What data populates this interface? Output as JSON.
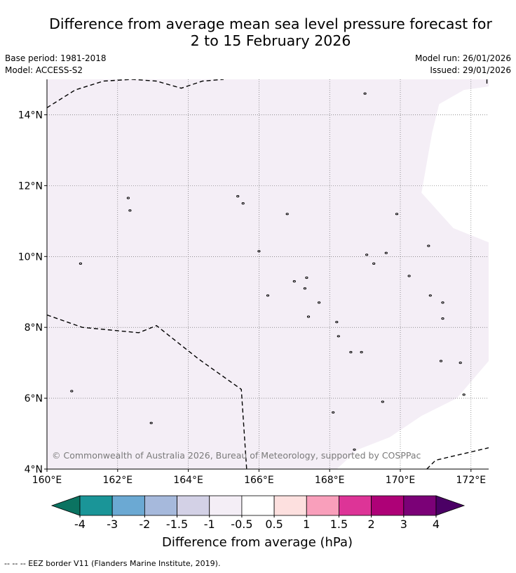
{
  "title_line1": "Difference from average mean sea level pressure forecast for",
  "title_line2": "2 to 15 February 2026",
  "meta_left": {
    "base_period": "Base period: 1981-2018",
    "model": "Model: ACCESS-S2"
  },
  "meta_right": {
    "model_run": "Model run: 26/01/2026",
    "issued": "Issued: 29/01/2026"
  },
  "copyright": "© Commonwealth of Australia 2026, Bureau of Meteorology, supported by COSPPac",
  "footer": "--  --  -- EEZ border V11 (Flanders Marine Institute, 2019).",
  "chart_data": {
    "type": "heatmap",
    "title": "Difference from average mean sea level pressure forecast for 2 to 15 February 2026",
    "x_range": [
      160,
      172.5
    ],
    "y_range": [
      4,
      15
    ],
    "x_ticks": [
      {
        "value": 160,
        "label": "160°E"
      },
      {
        "value": 162,
        "label": "162°E"
      },
      {
        "value": 164,
        "label": "164°E"
      },
      {
        "value": 166,
        "label": "166°E"
      },
      {
        "value": 168,
        "label": "168°E"
      },
      {
        "value": 170,
        "label": "170°E"
      },
      {
        "value": 172,
        "label": "172°E"
      }
    ],
    "y_ticks": [
      {
        "value": 14,
        "label": "14°N"
      },
      {
        "value": 12,
        "label": "12°N"
      },
      {
        "value": 10,
        "label": "10°N"
      },
      {
        "value": 8,
        "label": "8°N"
      },
      {
        "value": 6,
        "label": "6°N"
      },
      {
        "value": 4,
        "label": "4°N"
      }
    ],
    "grid": true,
    "fill_category": "-1 to -0.5",
    "fill_color": "#f4eef6",
    "neutral_category": "-0.5 to 0.5",
    "neutral_region_lonlat": [
      [
        172.5,
        14.8
      ],
      [
        171.8,
        14.7
      ],
      [
        171.1,
        14.3
      ],
      [
        170.9,
        13.5
      ],
      [
        170.6,
        11.8
      ],
      [
        171.5,
        10.8
      ],
      [
        172.0,
        10.6
      ],
      [
        172.5,
        10.4
      ],
      [
        172.5,
        7.05
      ],
      [
        171.6,
        6.0
      ],
      [
        170.6,
        5.5
      ],
      [
        169.7,
        4.9
      ],
      [
        168.8,
        4.55
      ],
      [
        168.2,
        4.0
      ],
      [
        172.5,
        4.0
      ]
    ],
    "eez_borders_lonlat": [
      [
        [
          160.0,
          14.2
        ],
        [
          160.8,
          14.7
        ],
        [
          161.6,
          14.95
        ],
        [
          162.4,
          15.0
        ],
        [
          163.1,
          14.95
        ],
        [
          163.8,
          14.75
        ],
        [
          164.4,
          14.95
        ],
        [
          165.0,
          15.0
        ]
      ],
      [
        [
          160.0,
          8.35
        ],
        [
          161.0,
          8.0
        ],
        [
          162.6,
          7.85
        ],
        [
          163.1,
          8.05
        ],
        [
          164.3,
          7.1
        ],
        [
          165.5,
          6.25
        ],
        [
          165.65,
          4.0
        ]
      ],
      [
        [
          170.75,
          4.0
        ],
        [
          171.0,
          4.25
        ],
        [
          172.5,
          4.6
        ]
      ],
      [
        [
          172.45,
          15.0
        ],
        [
          172.45,
          14.85
        ]
      ]
    ],
    "islands_lonlat": [
      [
        160.95,
        9.8
      ],
      [
        160.7,
        6.2
      ],
      [
        162.3,
        11.65
      ],
      [
        162.35,
        11.3
      ],
      [
        165.4,
        11.7
      ],
      [
        165.55,
        11.5
      ],
      [
        166.0,
        10.15
      ],
      [
        166.8,
        11.2
      ],
      [
        167.0,
        9.3
      ],
      [
        166.25,
        8.9
      ],
      [
        167.35,
        9.4
      ],
      [
        167.3,
        9.1
      ],
      [
        167.7,
        8.7
      ],
      [
        167.4,
        8.3
      ],
      [
        168.2,
        8.15
      ],
      [
        168.25,
        7.75
      ],
      [
        168.6,
        7.3
      ],
      [
        168.9,
        7.3
      ],
      [
        169.0,
        14.6
      ],
      [
        169.05,
        10.05
      ],
      [
        169.25,
        9.8
      ],
      [
        169.6,
        10.1
      ],
      [
        169.9,
        11.2
      ],
      [
        170.25,
        9.45
      ],
      [
        170.8,
        10.3
      ],
      [
        170.85,
        8.9
      ],
      [
        171.2,
        8.7
      ],
      [
        171.2,
        8.25
      ],
      [
        171.15,
        7.05
      ],
      [
        171.7,
        7.0
      ],
      [
        171.8,
        6.1
      ],
      [
        169.5,
        5.9
      ],
      [
        168.1,
        5.6
      ],
      [
        168.7,
        4.55
      ],
      [
        162.95,
        5.3
      ]
    ],
    "colorbar": {
      "label": "Difference from average (hPa)",
      "ticks": [
        "-4",
        "-3",
        "-2",
        "-1.5",
        "-1",
        "-0.5",
        "0.5",
        "1",
        "1.5",
        "2",
        "3",
        "4"
      ],
      "colors": [
        "#0b7361",
        "#1a9598",
        "#6ba9d3",
        "#a6b9dc",
        "#d3d1e6",
        "#f4eef6",
        "#ffffff",
        "#fde0df",
        "#f99fbb",
        "#dd3497",
        "#ae0177",
        "#7b0177",
        "#4b0065"
      ]
    }
  }
}
